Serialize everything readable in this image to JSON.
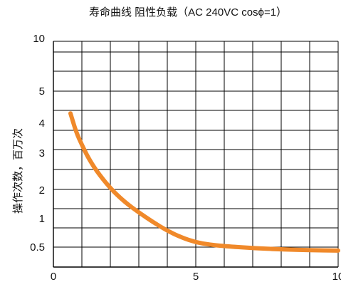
{
  "chart_data": {
    "type": "line",
    "title": "寿命曲线  阻性负载（AC 240VC cosϕ=1）",
    "xlabel": "",
    "ylabel": "操作次数，百万次",
    "x_ticks": [
      "0",
      "5",
      "10"
    ],
    "xlim": [
      0,
      10
    ],
    "y_ticks": [
      "0.5",
      "1",
      "2",
      "3",
      "4",
      "5",
      "10"
    ],
    "grid": true,
    "curve_color": "#F0892A",
    "series": [
      {
        "x": [
          0.6,
          0.8,
          1.0,
          1.2,
          1.5,
          2.0,
          2.5,
          3.0,
          3.5,
          4.0,
          4.5,
          5.0,
          5.5,
          6.0,
          7.0,
          8.0,
          9.0,
          10.0
        ],
        "y_ticklevel": [
          6.85,
          5.9,
          5.25,
          4.65,
          3.95,
          3.05,
          2.35,
          1.8,
          1.3,
          0.85,
          0.5,
          0.25,
          0.13,
          0.05,
          -0.05,
          -0.12,
          -0.16,
          -0.18
        ]
      }
    ]
  }
}
